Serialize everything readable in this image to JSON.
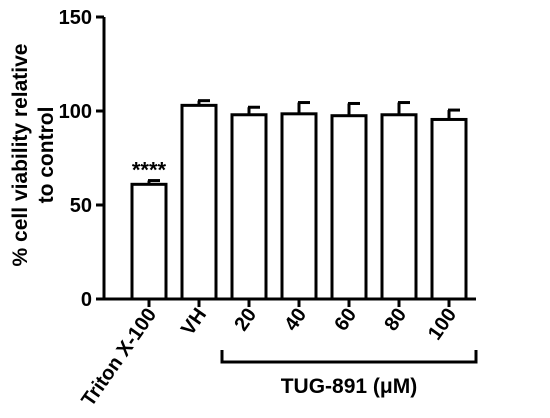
{
  "chart_data": {
    "type": "bar",
    "title": "",
    "ylabel": [
      "% cell viability relative",
      "to control"
    ],
    "xlabel": "",
    "ylim": [
      0,
      150
    ],
    "yticks": [
      0,
      50,
      100,
      150
    ],
    "grid": false,
    "categories": [
      "Triton X-100",
      "VH",
      "20",
      "40",
      "60",
      "80",
      "100"
    ],
    "values": [
      61,
      103,
      98,
      98.5,
      97.5,
      98,
      95.5
    ],
    "errors": [
      2,
      2.5,
      4,
      6,
      6.5,
      6.5,
      5
    ],
    "annotations": [
      {
        "category": "Triton X-100",
        "text": "****"
      }
    ],
    "group_label": {
      "text": "TUG-891 (μM)",
      "categories": [
        "20",
        "40",
        "60",
        "80",
        "100"
      ]
    },
    "bar_fill": "#ffffff",
    "bar_stroke": "#000000"
  }
}
